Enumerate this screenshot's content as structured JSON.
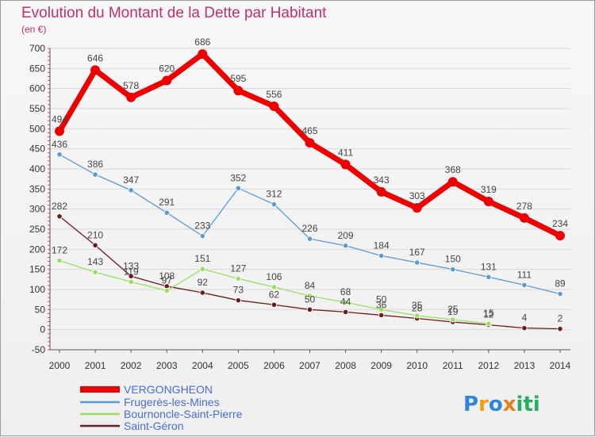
{
  "chart_data": {
    "type": "line",
    "title": "Evolution du Montant de la Dette par Habitant",
    "subtitle": "(en €)",
    "x": [
      "2000",
      "2001",
      "2002",
      "2003",
      "2004",
      "2005",
      "2006",
      "2007",
      "2008",
      "2009",
      "2010",
      "2011",
      "2012",
      "2013",
      "2014"
    ],
    "ylim": [
      -50,
      700
    ],
    "yticks": [
      -50,
      0,
      50,
      100,
      150,
      200,
      250,
      300,
      350,
      400,
      450,
      500,
      550,
      600,
      650,
      700
    ],
    "grid": "horizontal",
    "legend_position": "bottom-left",
    "series": [
      {
        "name": "VERGONGHEON",
        "color": "#ee0000",
        "values": [
          494,
          646,
          578,
          620,
          686,
          595,
          556,
          465,
          411,
          343,
          303,
          368,
          319,
          278,
          234
        ],
        "labels": [
          "494",
          "646",
          "578",
          "620",
          "686",
          "595",
          "556",
          "465",
          "411",
          "343",
          "303",
          "368",
          "319",
          "278",
          "234"
        ]
      },
      {
        "name": "Frugerès-les-Mines",
        "color": "#5a9bd5",
        "values": [
          436,
          386,
          347,
          291,
          233,
          352,
          312,
          226,
          209,
          184,
          167,
          150,
          131,
          111,
          89
        ],
        "labels": [
          "436",
          "386",
          "347",
          "291",
          "233",
          "352",
          "312",
          "226",
          "209",
          "184",
          "167",
          "150",
          "131",
          "111",
          "89"
        ]
      },
      {
        "name": "Bournoncle-Saint-Pierre",
        "color": "#99e060",
        "values": [
          172,
          143,
          119,
          97,
          151,
          127,
          106,
          84,
          68,
          50,
          35,
          25,
          15,
          null,
          null
        ],
        "labels": [
          "172",
          "143",
          "119",
          "97",
          "151",
          "127",
          "106",
          "84",
          "68",
          "50",
          "35",
          "25",
          "15",
          "",
          ""
        ]
      },
      {
        "name": "Saint-Géron",
        "color": "#6b1c1c",
        "values": [
          282,
          210,
          133,
          108,
          92,
          73,
          62,
          50,
          44,
          36,
          28,
          19,
          12,
          4,
          2
        ],
        "labels": [
          "282",
          "210",
          "133",
          "108",
          "92",
          "73",
          "62",
          "50",
          "44",
          "36",
          "28",
          "19",
          "12",
          "4",
          "2"
        ]
      }
    ]
  },
  "logo": {
    "letters": [
      "P",
      "r",
      "o",
      "x",
      "i",
      "t",
      "i"
    ],
    "colors": [
      "#2e86de",
      "#f39c12",
      "#2e86de",
      "#e67e22",
      "#27ae60",
      "#27ae60",
      "#27ae60"
    ]
  }
}
